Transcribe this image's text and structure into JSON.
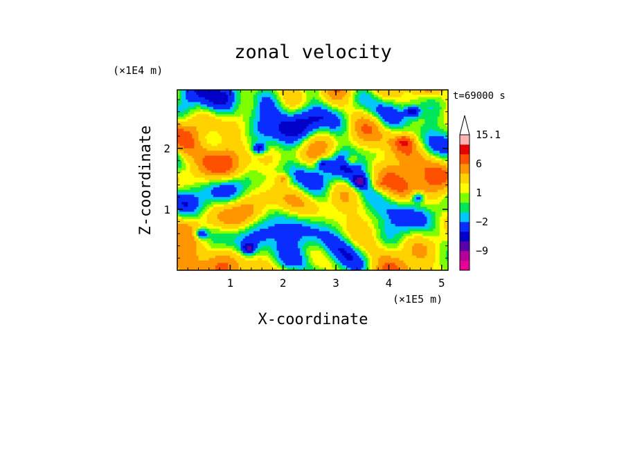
{
  "chart_data": {
    "type": "heatmap",
    "title": "zonal velocity",
    "xlabel": "X-coordinate",
    "ylabel": "Z-coordinate",
    "x_scale_label": "(×1E5 m)",
    "y_scale_label": "(×1E4 m)",
    "time_label": "t=69000 s",
    "xlim": [
      0,
      5.12
    ],
    "ylim": [
      0,
      2.96
    ],
    "x_ticks": [
      1,
      2,
      3,
      4,
      5
    ],
    "x_tick_labels": [
      "1",
      "2",
      "3",
      "4",
      "5"
    ],
    "y_ticks": [
      1,
      2
    ],
    "y_tick_labels": [
      "1",
      "2"
    ],
    "colorbar": {
      "levels": [
        -15,
        -12,
        -9,
        -6,
        -4,
        -2,
        -1,
        0,
        1,
        2,
        4,
        6,
        9,
        12,
        15.1
      ],
      "colors": [
        "#e60096",
        "#b4009b",
        "#5a00a8",
        "#0000c8",
        "#0a2dff",
        "#00c8ff",
        "#00e65a",
        "#7dff00",
        "#ffff00",
        "#ffd200",
        "#ff9600",
        "#ff5000",
        "#e60000",
        "#ffb4b4"
      ],
      "extend_top_color": "#ffffff",
      "labels": [
        {
          "value": 15.1,
          "text": "15.1"
        },
        {
          "value": 6,
          "text": "6"
        },
        {
          "value": 1,
          "text": "1"
        },
        {
          "value": -2,
          "text": "−2"
        },
        {
          "value": -9,
          "text": "−9"
        }
      ]
    },
    "field": {
      "grid": [
        128,
        74
      ],
      "dominant_range": [
        -1,
        4
      ],
      "features": [
        {
          "x": 4.45,
          "z": 2.6,
          "value": -6
        },
        {
          "x": 1.55,
          "z": 2.0,
          "value": -6
        },
        {
          "x": 3.45,
          "z": 1.45,
          "value": -6
        },
        {
          "x": 4.55,
          "z": 1.2,
          "value": -6
        },
        {
          "x": 1.35,
          "z": 0.35,
          "value": -6
        },
        {
          "x": 0.45,
          "z": 0.6,
          "value": -6
        },
        {
          "x": 2.75,
          "z": 1.75,
          "value": -5
        },
        {
          "x": 4.3,
          "z": 2.1,
          "value": 5
        },
        {
          "x": 2.0,
          "z": 1.5,
          "value": 4
        },
        {
          "x": 3.3,
          "z": 1.8,
          "value": 4
        },
        {
          "x": 3.8,
          "z": 1.4,
          "value": 3
        }
      ]
    }
  }
}
